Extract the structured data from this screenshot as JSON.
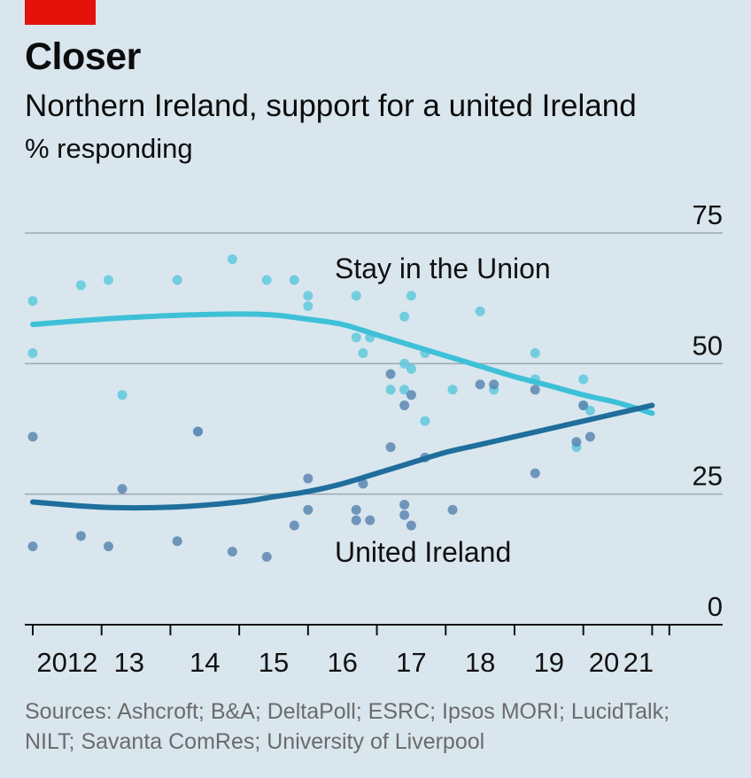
{
  "header": {
    "title": "Closer",
    "subtitle": "Northern Ireland, support for a united Ireland",
    "unit": "% responding"
  },
  "footer": {
    "source_line1": "Sources: Ashcroft; B&A; DeltaPoll; ESRC; Ipsos MORI; LucidTalk;",
    "source_line2": "NILT; Savanta ComRes; University of Liverpool"
  },
  "colors": {
    "background": "#d9e6ee",
    "brand_red": "#e3120b",
    "stay": "#3ec0d7",
    "united": "#1f6e9c",
    "stay_dots": "#5fc8dc",
    "united_dots": "#5c86b2",
    "grid": "#9aa7b1"
  },
  "chart_data": {
    "type": "scatter",
    "xlim": [
      2012,
      2021.6
    ],
    "ylim": [
      0,
      75
    ],
    "y_ticks": [
      "0",
      "25",
      "50",
      "75"
    ],
    "x_tick_labels": [
      {
        "label": "2012",
        "x": 2012.5
      },
      {
        "label": "13",
        "x": 2013.4
      },
      {
        "label": "14",
        "x": 2014.5
      },
      {
        "label": "15",
        "x": 2015.5
      },
      {
        "label": "16",
        "x": 2016.5
      },
      {
        "label": "17",
        "x": 2017.5
      },
      {
        "label": "18",
        "x": 2018.5
      },
      {
        "label": "19",
        "x": 2019.5
      },
      {
        "label": "20",
        "x": 2020.3
      },
      {
        "label": "21",
        "x": 2020.8
      }
    ],
    "grid": true,
    "series": [
      {
        "name": "Stay in the Union",
        "trend": [
          [
            2012.0,
            57.5
          ],
          [
            2013.0,
            58.5
          ],
          [
            2014.0,
            59.2
          ],
          [
            2015.0,
            59.5
          ],
          [
            2015.5,
            59.3
          ],
          [
            2016.0,
            58.5
          ],
          [
            2016.5,
            57.5
          ],
          [
            2017.0,
            55.5
          ],
          [
            2017.5,
            53.5
          ],
          [
            2018.0,
            51.5
          ],
          [
            2018.5,
            49.5
          ],
          [
            2019.0,
            47.5
          ],
          [
            2019.5,
            45.8
          ],
          [
            2020.0,
            44.0
          ],
          [
            2020.5,
            42.5
          ],
          [
            2021.0,
            40.5
          ]
        ],
        "points": [
          [
            2012.0,
            62
          ],
          [
            2012.0,
            52
          ],
          [
            2012.7,
            65
          ],
          [
            2013.1,
            66
          ],
          [
            2013.3,
            44
          ],
          [
            2014.1,
            66
          ],
          [
            2014.4,
            37
          ],
          [
            2014.9,
            70
          ],
          [
            2015.4,
            66
          ],
          [
            2015.8,
            66
          ],
          [
            2016.0,
            63
          ],
          [
            2016.0,
            61
          ],
          [
            2016.7,
            63
          ],
          [
            2016.7,
            55
          ],
          [
            2016.8,
            52
          ],
          [
            2016.9,
            55
          ],
          [
            2017.2,
            45
          ],
          [
            2017.4,
            59
          ],
          [
            2017.4,
            45
          ],
          [
            2017.4,
            50
          ],
          [
            2017.5,
            49
          ],
          [
            2017.5,
            63
          ],
          [
            2017.7,
            52
          ],
          [
            2017.7,
            39
          ],
          [
            2018.1,
            45
          ],
          [
            2018.5,
            60
          ],
          [
            2018.7,
            45
          ],
          [
            2019.3,
            47
          ],
          [
            2019.3,
            52
          ],
          [
            2019.9,
            34
          ],
          [
            2020.0,
            47
          ],
          [
            2020.0,
            42
          ],
          [
            2020.1,
            41
          ]
        ]
      },
      {
        "name": "United Ireland",
        "trend": [
          [
            2012.0,
            23.5
          ],
          [
            2013.0,
            22.5
          ],
          [
            2014.0,
            22.5
          ],
          [
            2015.0,
            23.5
          ],
          [
            2015.5,
            24.5
          ],
          [
            2016.0,
            25.5
          ],
          [
            2016.5,
            27.0
          ],
          [
            2017.0,
            29.0
          ],
          [
            2017.5,
            31.0
          ],
          [
            2018.0,
            33.0
          ],
          [
            2018.5,
            34.5
          ],
          [
            2019.0,
            36.0
          ],
          [
            2019.5,
            37.5
          ],
          [
            2020.0,
            39.0
          ],
          [
            2020.5,
            40.5
          ],
          [
            2021.0,
            42.0
          ]
        ],
        "points": [
          [
            2012.0,
            36
          ],
          [
            2012.0,
            15
          ],
          [
            2012.7,
            17
          ],
          [
            2013.1,
            15
          ],
          [
            2013.3,
            26
          ],
          [
            2014.1,
            16
          ],
          [
            2014.4,
            37
          ],
          [
            2014.9,
            14
          ],
          [
            2015.4,
            13
          ],
          [
            2015.8,
            19
          ],
          [
            2016.0,
            28
          ],
          [
            2016.0,
            22
          ],
          [
            2016.7,
            22
          ],
          [
            2016.7,
            20
          ],
          [
            2016.8,
            27
          ],
          [
            2016.9,
            20
          ],
          [
            2017.2,
            34
          ],
          [
            2017.4,
            23
          ],
          [
            2017.4,
            21
          ],
          [
            2017.4,
            42
          ],
          [
            2017.5,
            44
          ],
          [
            2017.5,
            19
          ],
          [
            2017.7,
            32
          ],
          [
            2018.1,
            22
          ],
          [
            2018.5,
            46
          ],
          [
            2018.7,
            46
          ],
          [
            2019.3,
            45
          ],
          [
            2019.3,
            29
          ],
          [
            2019.9,
            35
          ],
          [
            2020.0,
            42
          ],
          [
            2020.1,
            36
          ],
          [
            2017.2,
            48
          ]
        ]
      }
    ],
    "annotations": [
      {
        "text": "Stay in the Union",
        "series": "Stay in the Union"
      },
      {
        "text": "United Ireland",
        "series": "United Ireland"
      }
    ]
  }
}
